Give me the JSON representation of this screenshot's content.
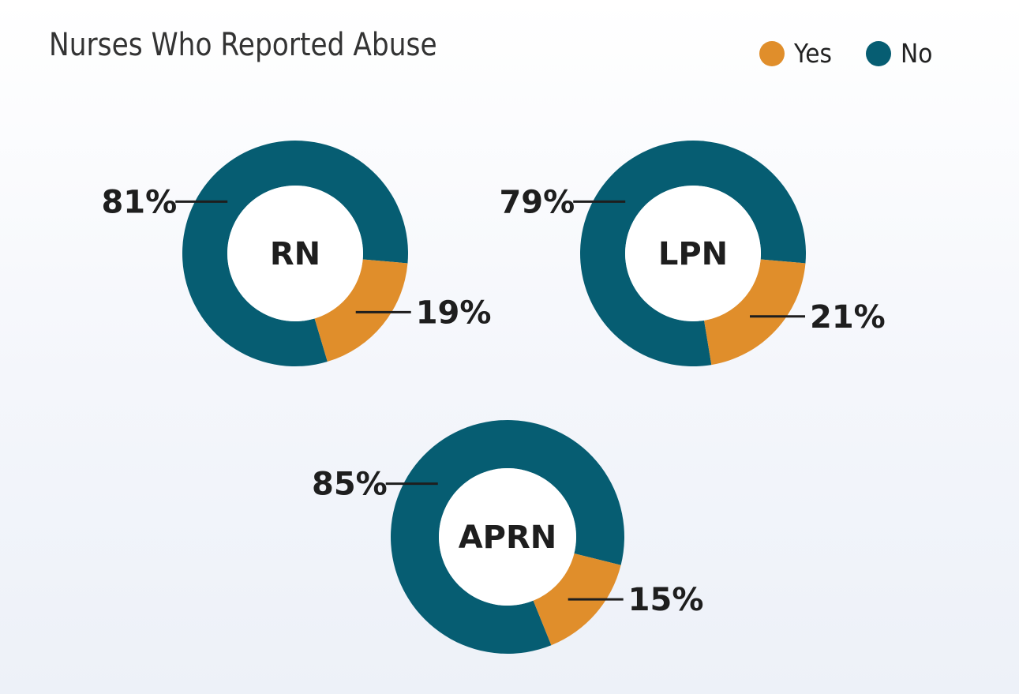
{
  "title": "Nurses Who Reported Abuse",
  "legend": [
    {
      "label": "Yes",
      "color": "#E08E2B"
    },
    {
      "label": "No",
      "color": "#065D72"
    }
  ],
  "chart_data": {
    "type": "pie",
    "title": "Nurses Who Reported Abuse",
    "legend_position": "top-right",
    "categories": [
      "Yes",
      "No"
    ],
    "colors": {
      "Yes": "#E08E2B",
      "No": "#065D72"
    },
    "donuts": [
      {
        "label": "RN",
        "values": {
          "Yes": 19,
          "No": 81
        },
        "value_labels": {
          "Yes": "19%",
          "No": "81%"
        }
      },
      {
        "label": "LPN",
        "values": {
          "Yes": 21,
          "No": 79
        },
        "value_labels": {
          "Yes": "21%",
          "No": "79%"
        }
      },
      {
        "label": "APRN",
        "values": {
          "Yes": 15,
          "No": 85
        },
        "value_labels": {
          "Yes": "15%",
          "No": "85%"
        }
      }
    ]
  }
}
